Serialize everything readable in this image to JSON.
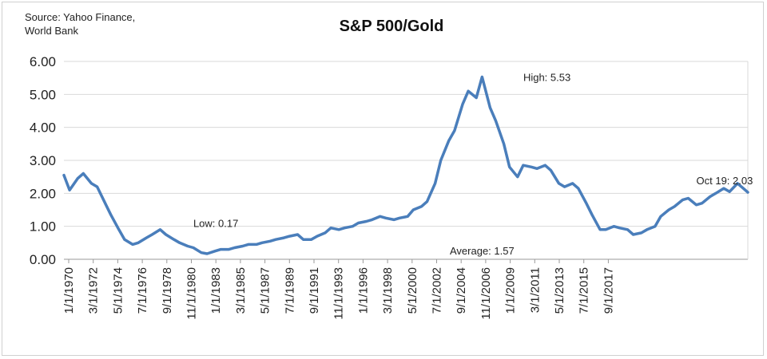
{
  "source_line1": "Source: Yahoo Finance,",
  "source_line2": "World Bank",
  "chart_data": {
    "type": "line",
    "title": "S&P 500/Gold",
    "xlabel": "",
    "ylabel": "",
    "ylim": [
      0,
      6
    ],
    "xlim": [
      "1970-01-01",
      "2019-10-01"
    ],
    "y_ticks": [
      "0.00",
      "1.00",
      "2.00",
      "3.00",
      "4.00",
      "5.00",
      "6.00"
    ],
    "x_ticks": [
      "1/1/1970",
      "3/1/1972",
      "5/1/1974",
      "7/1/1976",
      "9/1/1978",
      "11/1/1980",
      "1/1/1983",
      "3/1/1985",
      "5/1/1987",
      "7/1/1989",
      "9/1/1991",
      "11/1/1993",
      "1/1/1996",
      "3/1/1998",
      "5/1/2000",
      "7/1/2002",
      "9/1/2004",
      "11/1/2006",
      "1/1/2009",
      "3/1/2011",
      "5/1/2013",
      "7/1/2015",
      "9/1/2017"
    ],
    "grid": true,
    "line_color": "#4a7ebb",
    "annotations": [
      {
        "text": "High: 5.53",
        "x": "2000-08-01",
        "y": 5.53
      },
      {
        "text": "Low: 0.17",
        "x": "1980-02-01",
        "y": 0.17
      },
      {
        "text": "Average: 1.57",
        "x": "2000-06-01",
        "y": 0.1
      },
      {
        "text": "Oct 19: 2.03",
        "x": "2017-01-01",
        "y": 2.4
      }
    ],
    "series": [
      {
        "x": [
          "1970-01-01",
          "1970-06-01",
          "1971-01-01",
          "1971-06-01",
          "1972-01-01",
          "1972-06-01",
          "1973-01-01",
          "1973-06-01",
          "1974-01-01",
          "1974-06-01",
          "1975-01-01",
          "1975-06-01",
          "1976-01-01",
          "1976-06-01",
          "1977-01-01",
          "1977-06-01",
          "1978-01-01",
          "1978-06-01",
          "1979-01-01",
          "1979-06-01",
          "1980-01-01",
          "1980-06-01",
          "1981-01-01",
          "1981-06-01",
          "1982-01-01",
          "1982-06-01",
          "1983-01-01",
          "1983-06-01",
          "1984-01-01",
          "1984-06-01",
          "1985-01-01",
          "1985-06-01",
          "1986-01-01",
          "1986-06-01",
          "1987-01-01",
          "1987-06-01",
          "1988-01-01",
          "1988-06-01",
          "1989-01-01",
          "1989-06-01",
          "1990-01-01",
          "1990-06-01",
          "1991-01-01",
          "1991-06-01",
          "1992-01-01",
          "1992-06-01",
          "1993-01-01",
          "1993-06-01",
          "1994-01-01",
          "1994-06-01",
          "1995-01-01",
          "1995-06-01",
          "1996-01-01",
          "1996-06-01",
          "1997-01-01",
          "1997-06-01",
          "1998-01-01",
          "1998-06-01",
          "1999-01-01",
          "1999-06-01",
          "2000-01-01",
          "2000-06-01",
          "2001-01-01",
          "2001-06-01",
          "2002-01-01",
          "2002-06-01",
          "2003-01-01",
          "2003-06-01",
          "2004-01-01",
          "2004-06-01",
          "2005-01-01",
          "2005-06-01",
          "2006-01-01",
          "2006-06-01",
          "2007-01-01",
          "2007-06-01",
          "2008-01-01",
          "2008-06-01",
          "2009-01-01",
          "2009-06-01",
          "2010-01-01",
          "2010-06-01",
          "2011-01-01",
          "2011-06-01",
          "2012-01-01",
          "2012-06-01",
          "2013-01-01",
          "2013-06-01",
          "2014-01-01",
          "2014-06-01",
          "2015-01-01",
          "2015-06-01",
          "2016-01-01",
          "2016-06-01",
          "2017-01-01",
          "2017-06-01",
          "2018-01-01",
          "2018-06-01",
          "2019-01-01",
          "2019-06-01",
          "2019-10-01"
        ],
        "values": [
          2.55,
          2.1,
          2.45,
          2.6,
          2.3,
          2.2,
          1.7,
          1.35,
          0.9,
          0.6,
          0.45,
          0.5,
          0.65,
          0.75,
          0.9,
          0.75,
          0.6,
          0.5,
          0.4,
          0.35,
          0.2,
          0.17,
          0.25,
          0.3,
          0.3,
          0.35,
          0.4,
          0.45,
          0.45,
          0.5,
          0.55,
          0.6,
          0.65,
          0.7,
          0.75,
          0.6,
          0.6,
          0.7,
          0.8,
          0.95,
          0.9,
          0.95,
          1.0,
          1.1,
          1.15,
          1.2,
          1.3,
          1.25,
          1.2,
          1.25,
          1.3,
          1.5,
          1.6,
          1.75,
          2.3,
          3.0,
          3.6,
          3.9,
          4.7,
          5.1,
          4.9,
          5.53,
          4.6,
          4.2,
          3.5,
          2.8,
          2.5,
          2.85,
          2.8,
          2.75,
          2.85,
          2.7,
          2.3,
          2.2,
          2.3,
          2.15,
          1.7,
          1.35,
          0.9,
          0.9,
          1.0,
          0.95,
          0.9,
          0.75,
          0.8,
          0.9,
          1.0,
          1.3,
          1.5,
          1.6,
          1.8,
          1.85,
          1.65,
          1.7,
          1.9,
          2.0,
          2.15,
          2.05,
          2.3,
          2.15,
          2.03
        ]
      }
    ]
  }
}
